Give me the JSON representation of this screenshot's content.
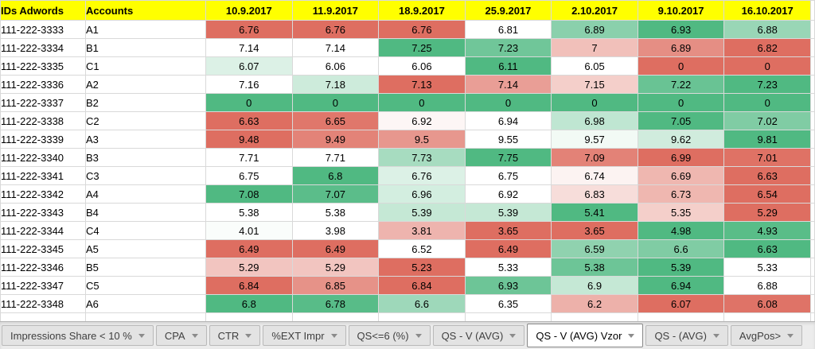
{
  "colors": {
    "header_bg": "#ffff00",
    "grid_line": "#d9d9d9",
    "scale_low": "#de6e61",
    "scale_mid": "#ffffff",
    "scale_high": "#50b982",
    "tab_bar_bg": "#ececec",
    "tab_bg": "#e3e3e3",
    "active_tab_bg": "#ffffff"
  },
  "table": {
    "columns": [
      "IDs Adwords",
      "Accounts",
      "10.9.2017",
      "11.9.2017",
      "18.9.2017",
      "25.9.2017",
      "2.10.2017",
      "9.10.2017",
      "16.10.2017"
    ],
    "rows": [
      {
        "id": "111-222-3333",
        "account": "A1",
        "values": [
          "6.76",
          "6.76",
          "6.76",
          "6.81",
          "6.89",
          "6.93",
          "6.88"
        ]
      },
      {
        "id": "111-222-3334",
        "account": "B1",
        "values": [
          "7.14",
          "7.14",
          "7.25",
          "7.23",
          "7",
          "6.89",
          "6.82"
        ]
      },
      {
        "id": "111-222-3335",
        "account": "C1",
        "values": [
          "6.07",
          "6.06",
          "6.06",
          "6.11",
          "6.05",
          "0",
          "0"
        ]
      },
      {
        "id": "111-222-3336",
        "account": "A2",
        "values": [
          "7.16",
          "7.18",
          "7.13",
          "7.14",
          "7.15",
          "7.22",
          "7.23"
        ]
      },
      {
        "id": "111-222-3337",
        "account": "B2",
        "values": [
          "0",
          "0",
          "0",
          "0",
          "0",
          "0",
          "0"
        ]
      },
      {
        "id": "111-222-3338",
        "account": "C2",
        "values": [
          "6.63",
          "6.65",
          "6.92",
          "6.94",
          "6.98",
          "7.05",
          "7.02"
        ]
      },
      {
        "id": "111-222-3339",
        "account": "A3",
        "values": [
          "9.48",
          "9.49",
          "9.5",
          "9.55",
          "9.57",
          "9.62",
          "9.81"
        ]
      },
      {
        "id": "111-222-3340",
        "account": "B3",
        "values": [
          "7.71",
          "7.71",
          "7.73",
          "7.75",
          "7.09",
          "6.99",
          "7.01"
        ]
      },
      {
        "id": "111-222-3341",
        "account": "C3",
        "values": [
          "6.75",
          "6.8",
          "6.76",
          "6.75",
          "6.74",
          "6.69",
          "6.63"
        ]
      },
      {
        "id": "111-222-3342",
        "account": "A4",
        "values": [
          "7.08",
          "7.07",
          "6.96",
          "6.92",
          "6.83",
          "6.73",
          "6.54"
        ]
      },
      {
        "id": "111-222-3343",
        "account": "B4",
        "values": [
          "5.38",
          "5.38",
          "5.39",
          "5.39",
          "5.41",
          "5.35",
          "5.29"
        ]
      },
      {
        "id": "111-222-3344",
        "account": "C4",
        "values": [
          "4.01",
          "3.98",
          "3.81",
          "3.65",
          "3.65",
          "4.98",
          "4.93"
        ]
      },
      {
        "id": "111-222-3345",
        "account": "A5",
        "values": [
          "6.49",
          "6.49",
          "6.52",
          "6.49",
          "6.59",
          "6.6",
          "6.63"
        ]
      },
      {
        "id": "111-222-3346",
        "account": "B5",
        "values": [
          "5.29",
          "5.29",
          "5.23",
          "5.33",
          "5.38",
          "5.39",
          "5.33"
        ]
      },
      {
        "id": "111-222-3347",
        "account": "C5",
        "values": [
          "6.84",
          "6.85",
          "6.84",
          "6.93",
          "6.9",
          "6.94",
          "6.88"
        ]
      },
      {
        "id": "111-222-3348",
        "account": "A6",
        "values": [
          "6.8",
          "6.78",
          "6.6",
          "6.35",
          "6.2",
          "6.07",
          "6.08"
        ]
      }
    ]
  },
  "sheet_tabs": [
    {
      "label": "Impressions Share < 10 %",
      "active": false
    },
    {
      "label": "CPA",
      "active": false
    },
    {
      "label": "CTR",
      "active": false
    },
    {
      "label": "%EXT Impr",
      "active": false
    },
    {
      "label": "QS<=6 (%)",
      "active": false
    },
    {
      "label": "QS - V (AVG)",
      "active": false
    },
    {
      "label": "QS - V (AVG) Vzor",
      "active": true
    },
    {
      "label": "QS - (AVG)",
      "active": false
    },
    {
      "label": "AvgPos>",
      "active": false
    }
  ]
}
